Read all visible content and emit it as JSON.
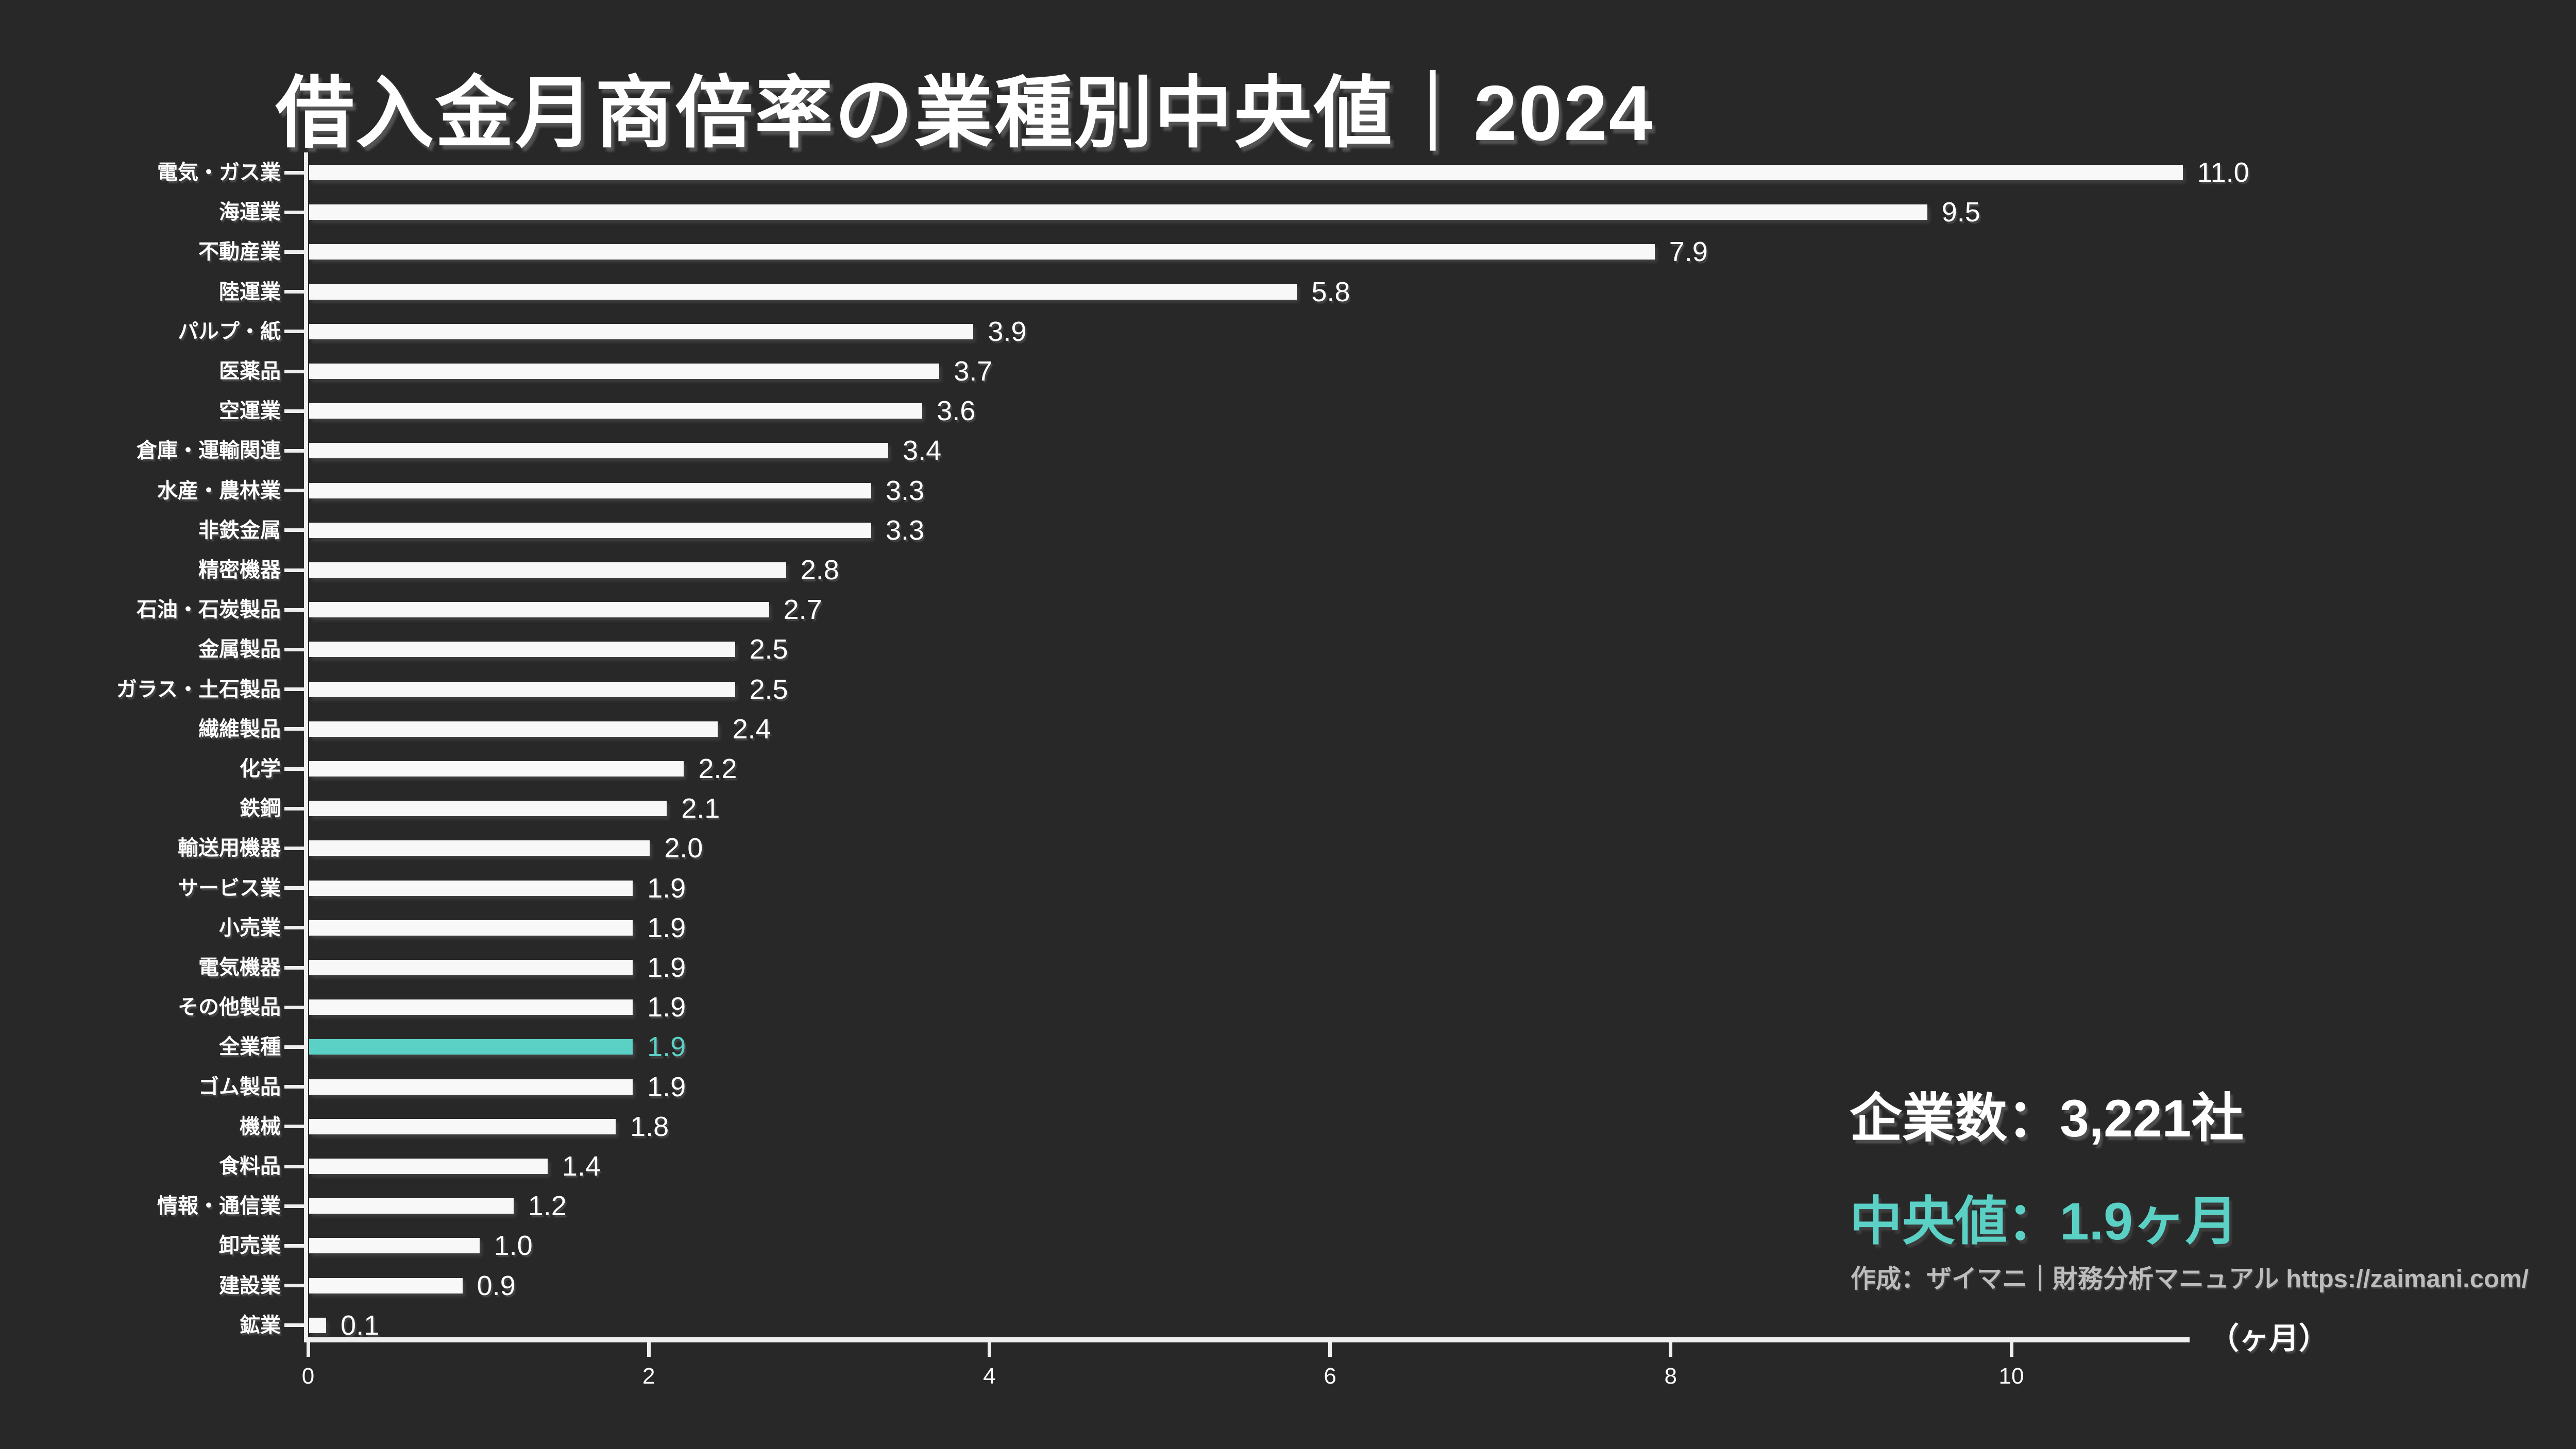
{
  "title": "借入金月商倍率の業種別中央値｜2024",
  "chart_data": {
    "type": "bar",
    "orientation": "horizontal",
    "title": "借入金月商倍率の業種別中央値｜2024",
    "categories": [
      "電気・ガス業",
      "海運業",
      "不動産業",
      "陸運業",
      "パルプ・紙",
      "医薬品",
      "空運業",
      "倉庫・運輸関連",
      "水産・農林業",
      "非鉄金属",
      "精密機器",
      "石油・石炭製品",
      "金属製品",
      "ガラス・土石製品",
      "繊維製品",
      "化学",
      "鉄鋼",
      "輸送用機器",
      "サービス業",
      "小売業",
      "電気機器",
      "その他製品",
      "全業種",
      "ゴム製品",
      "機械",
      "食料品",
      "情報・通信業",
      "卸売業",
      "建設業",
      "鉱業"
    ],
    "values": [
      11.0,
      9.5,
      7.9,
      5.8,
      3.9,
      3.7,
      3.6,
      3.4,
      3.3,
      3.3,
      2.8,
      2.7,
      2.5,
      2.5,
      2.4,
      2.2,
      2.1,
      2.0,
      1.9,
      1.9,
      1.9,
      1.9,
      1.9,
      1.9,
      1.8,
      1.4,
      1.2,
      1.0,
      0.9,
      0.1
    ],
    "value_decimals": 1,
    "highlight_category": "全業種",
    "xlabel": "（ヶ月）",
    "xticks": [
      0,
      2,
      4,
      6,
      8,
      10
    ],
    "xlim": [
      0,
      11
    ],
    "grid": false,
    "legend": false
  },
  "annotations": {
    "companies_label": "企業数：3,221社",
    "median_label": "中央値：1.9ヶ月",
    "credit": "作成：ザイマニ｜財務分析マニュアル https://zaimani.com/"
  },
  "colors": {
    "background": "#282828",
    "bar": "#F8F8F8",
    "accent": "#5BD1C6",
    "text": "#FFFFFF",
    "muted_text": "#BDBDBD",
    "axis": "#EFEFEF"
  }
}
